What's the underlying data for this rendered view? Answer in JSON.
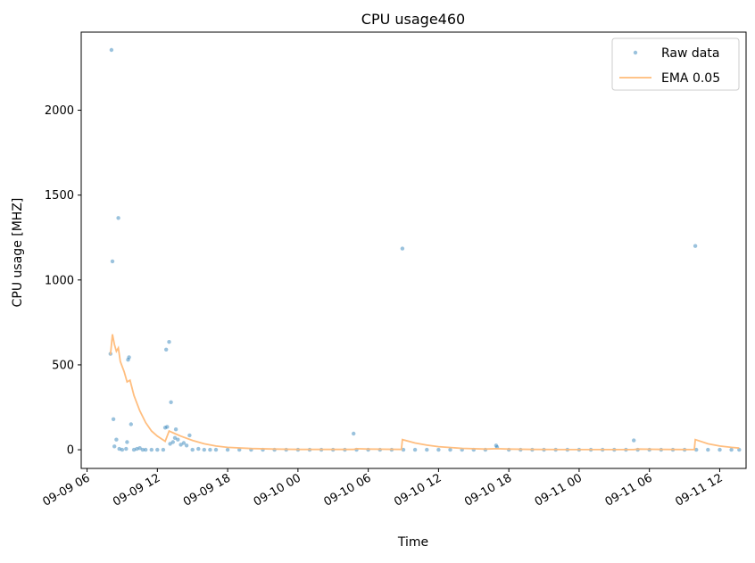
{
  "chart_data": {
    "type": "scatter",
    "title": "CPU usage460",
    "xlabel": "Time",
    "ylabel": "CPU usage [MHZ]",
    "x_axis_type": "datetime",
    "xlim": [
      "2016-09-09 05:30",
      "2016-09-11 14:15"
    ],
    "ylim": [
      -110,
      2460
    ],
    "x_ticks": [
      {
        "label": "09-09 06",
        "value": "2016-09-09 06:00"
      },
      {
        "label": "09-09 12",
        "value": "2016-09-09 12:00"
      },
      {
        "label": "09-09 18",
        "value": "2016-09-09 18:00"
      },
      {
        "label": "09-10 00",
        "value": "2016-09-10 00:00"
      },
      {
        "label": "09-10 06",
        "value": "2016-09-10 06:00"
      },
      {
        "label": "09-10 12",
        "value": "2016-09-10 12:00"
      },
      {
        "label": "09-10 18",
        "value": "2016-09-10 18:00"
      },
      {
        "label": "09-11 00",
        "value": "2016-09-11 00:00"
      },
      {
        "label": "09-11 06",
        "value": "2016-09-11 06:00"
      },
      {
        "label": "09-11 12",
        "value": "2016-09-11 12:00"
      }
    ],
    "y_ticks": [
      {
        "label": "0",
        "value": 0
      },
      {
        "label": "500",
        "value": 500
      },
      {
        "label": "1000",
        "value": 1000
      },
      {
        "label": "1500",
        "value": 1500
      },
      {
        "label": "2000",
        "value": 2000
      }
    ],
    "grid": false,
    "legend": {
      "position": "top-right",
      "entries": [
        "Raw data",
        "EMA 0.05"
      ]
    },
    "series": [
      {
        "name": "Raw data",
        "style": "points",
        "color": "#1f77b4",
        "points": [
          [
            "2016-09-09 08:00",
            565
          ],
          [
            "2016-09-09 08:05",
            2355
          ],
          [
            "2016-09-09 08:10",
            1110
          ],
          [
            "2016-09-09 08:15",
            180
          ],
          [
            "2016-09-09 08:20",
            20
          ],
          [
            "2016-09-09 08:30",
            60
          ],
          [
            "2016-09-09 08:40",
            1365
          ],
          [
            "2016-09-09 08:45",
            5
          ],
          [
            "2016-09-09 09:00",
            0
          ],
          [
            "2016-09-09 09:20",
            5
          ],
          [
            "2016-09-09 09:25",
            45
          ],
          [
            "2016-09-09 09:30",
            530
          ],
          [
            "2016-09-09 09:35",
            545
          ],
          [
            "2016-09-09 09:45",
            150
          ],
          [
            "2016-09-09 10:00",
            0
          ],
          [
            "2016-09-09 10:15",
            5
          ],
          [
            "2016-09-09 10:30",
            10
          ],
          [
            "2016-09-09 10:45",
            0
          ],
          [
            "2016-09-09 11:00",
            0
          ],
          [
            "2016-09-09 11:30",
            0
          ],
          [
            "2016-09-09 12:00",
            0
          ],
          [
            "2016-09-09 12:30",
            0
          ],
          [
            "2016-09-09 12:40",
            130
          ],
          [
            "2016-09-09 12:45",
            590
          ],
          [
            "2016-09-09 12:50",
            135
          ],
          [
            "2016-09-09 13:00",
            635
          ],
          [
            "2016-09-09 13:05",
            35
          ],
          [
            "2016-09-09 13:10",
            280
          ],
          [
            "2016-09-09 13:20",
            45
          ],
          [
            "2016-09-09 13:30",
            70
          ],
          [
            "2016-09-09 13:35",
            120
          ],
          [
            "2016-09-09 13:45",
            60
          ],
          [
            "2016-09-09 14:00",
            30
          ],
          [
            "2016-09-09 14:15",
            40
          ],
          [
            "2016-09-09 14:30",
            25
          ],
          [
            "2016-09-09 14:45",
            85
          ],
          [
            "2016-09-09 15:00",
            0
          ],
          [
            "2016-09-09 15:30",
            5
          ],
          [
            "2016-09-09 16:00",
            0
          ],
          [
            "2016-09-09 16:30",
            0
          ],
          [
            "2016-09-09 17:00",
            0
          ],
          [
            "2016-09-09 18:00",
            0
          ],
          [
            "2016-09-09 19:00",
            0
          ],
          [
            "2016-09-09 20:00",
            0
          ],
          [
            "2016-09-09 21:00",
            0
          ],
          [
            "2016-09-09 22:00",
            0
          ],
          [
            "2016-09-09 23:00",
            0
          ],
          [
            "2016-09-10 00:00",
            0
          ],
          [
            "2016-09-10 01:00",
            0
          ],
          [
            "2016-09-10 02:00",
            0
          ],
          [
            "2016-09-10 03:00",
            0
          ],
          [
            "2016-09-10 04:00",
            0
          ],
          [
            "2016-09-10 04:45",
            95
          ],
          [
            "2016-09-10 05:00",
            0
          ],
          [
            "2016-09-10 06:00",
            0
          ],
          [
            "2016-09-10 07:00",
            0
          ],
          [
            "2016-09-10 08:00",
            0
          ],
          [
            "2016-09-10 08:55",
            1185
          ],
          [
            "2016-09-10 09:00",
            0
          ],
          [
            "2016-09-10 10:00",
            0
          ],
          [
            "2016-09-10 11:00",
            0
          ],
          [
            "2016-09-10 12:00",
            0
          ],
          [
            "2016-09-10 13:00",
            0
          ],
          [
            "2016-09-10 14:00",
            0
          ],
          [
            "2016-09-10 15:00",
            0
          ],
          [
            "2016-09-10 16:00",
            0
          ],
          [
            "2016-09-10 16:55",
            25
          ],
          [
            "2016-09-10 17:00",
            15
          ],
          [
            "2016-09-10 18:00",
            0
          ],
          [
            "2016-09-10 19:00",
            0
          ],
          [
            "2016-09-10 20:00",
            0
          ],
          [
            "2016-09-10 21:00",
            0
          ],
          [
            "2016-09-10 22:00",
            0
          ],
          [
            "2016-09-10 23:00",
            0
          ],
          [
            "2016-09-11 00:00",
            0
          ],
          [
            "2016-09-11 01:00",
            0
          ],
          [
            "2016-09-11 02:00",
            0
          ],
          [
            "2016-09-11 03:00",
            0
          ],
          [
            "2016-09-11 04:00",
            0
          ],
          [
            "2016-09-11 04:40",
            55
          ],
          [
            "2016-09-11 05:00",
            0
          ],
          [
            "2016-09-11 06:00",
            0
          ],
          [
            "2016-09-11 07:00",
            0
          ],
          [
            "2016-09-11 08:00",
            0
          ],
          [
            "2016-09-11 09:00",
            0
          ],
          [
            "2016-09-11 09:55",
            1200
          ],
          [
            "2016-09-11 10:00",
            0
          ],
          [
            "2016-09-11 11:00",
            0
          ],
          [
            "2016-09-11 12:00",
            0
          ],
          [
            "2016-09-11 13:00",
            0
          ],
          [
            "2016-09-11 13:40",
            0
          ]
        ]
      },
      {
        "name": "EMA 0.05",
        "style": "line",
        "color": "#ffbb78",
        "points": [
          [
            "2016-09-09 08:00",
            560
          ],
          [
            "2016-09-09 08:10",
            680
          ],
          [
            "2016-09-09 08:20",
            620
          ],
          [
            "2016-09-09 08:30",
            580
          ],
          [
            "2016-09-09 08:40",
            600
          ],
          [
            "2016-09-09 08:50",
            520
          ],
          [
            "2016-09-09 09:10",
            460
          ],
          [
            "2016-09-09 09:25",
            400
          ],
          [
            "2016-09-09 09:40",
            410
          ],
          [
            "2016-09-09 10:00",
            320
          ],
          [
            "2016-09-09 10:30",
            230
          ],
          [
            "2016-09-09 11:00",
            160
          ],
          [
            "2016-09-09 11:30",
            110
          ],
          [
            "2016-09-09 12:00",
            80
          ],
          [
            "2016-09-09 12:40",
            50
          ],
          [
            "2016-09-09 13:00",
            110
          ],
          [
            "2016-09-09 13:30",
            95
          ],
          [
            "2016-09-09 14:00",
            80
          ],
          [
            "2016-09-09 15:00",
            55
          ],
          [
            "2016-09-09 16:00",
            35
          ],
          [
            "2016-09-09 17:00",
            22
          ],
          [
            "2016-09-09 18:00",
            14
          ],
          [
            "2016-09-09 20:00",
            7
          ],
          [
            "2016-09-09 22:00",
            4
          ],
          [
            "2016-09-10 00:00",
            2
          ],
          [
            "2016-09-10 04:45",
            2
          ],
          [
            "2016-09-10 05:00",
            6
          ],
          [
            "2016-09-10 06:00",
            4
          ],
          [
            "2016-09-10 08:50",
            2
          ],
          [
            "2016-09-10 08:55",
            60
          ],
          [
            "2016-09-10 10:00",
            40
          ],
          [
            "2016-09-10 11:00",
            27
          ],
          [
            "2016-09-10 12:00",
            18
          ],
          [
            "2016-09-10 14:00",
            8
          ],
          [
            "2016-09-10 16:00",
            4
          ],
          [
            "2016-09-10 17:00",
            6
          ],
          [
            "2016-09-10 18:00",
            4
          ],
          [
            "2016-09-10 20:00",
            2
          ],
          [
            "2016-09-11 00:00",
            1
          ],
          [
            "2016-09-11 04:40",
            1
          ],
          [
            "2016-09-11 05:00",
            4
          ],
          [
            "2016-09-11 07:00",
            2
          ],
          [
            "2016-09-11 09:50",
            1
          ],
          [
            "2016-09-11 09:55",
            60
          ],
          [
            "2016-09-11 11:00",
            35
          ],
          [
            "2016-09-11 12:00",
            22
          ],
          [
            "2016-09-11 13:00",
            14
          ],
          [
            "2016-09-11 13:40",
            10
          ]
        ]
      }
    ]
  }
}
